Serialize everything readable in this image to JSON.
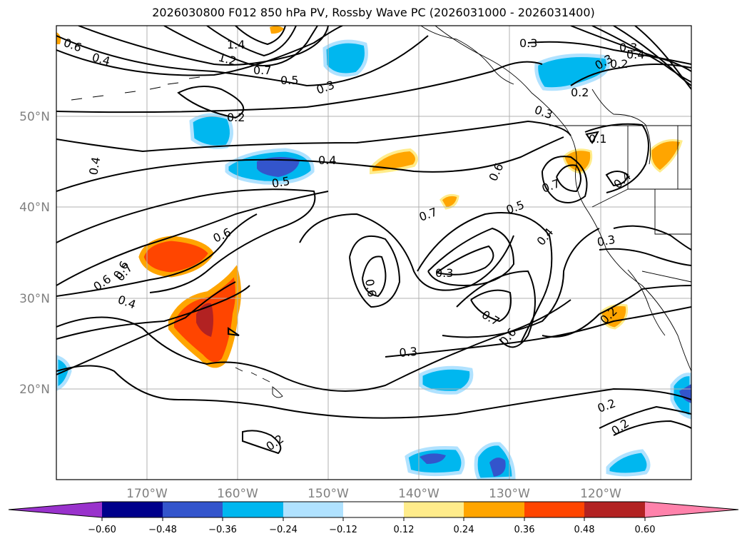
{
  "title": "2026030800 F012 850 hPa PV, Rossby Wave PC (2026031000 - 2026031400)",
  "map": {
    "lon_ticks": [
      "170°W",
      "160°W",
      "150°W",
      "140°W",
      "130°W",
      "120°W"
    ],
    "lat_ticks": [
      "50°N",
      "40°N",
      "30°N",
      "20°N"
    ],
    "contour_labels": [
      "0.6",
      "0.4",
      "1.4",
      "1.2",
      "0.7",
      "0.5",
      "0.3",
      "0.2",
      "0.4",
      "0.5",
      "0.6",
      "0.6",
      "0.7",
      "0.4",
      "0.5",
      "0.6",
      "0.7",
      "0.3",
      "0.3",
      "0.6",
      "0.4",
      "0.4",
      "0.7",
      "0.6",
      "0.3",
      "0.2",
      "0.2",
      "0.2",
      "0.2",
      "0.3",
      "0.2",
      "0.3",
      "0.4",
      "0.3",
      "0.3",
      "0.7",
      "0.6",
      "0.1",
      "0.4",
      "0.2"
    ]
  },
  "colorbar": {
    "ticks": [
      "−0.60",
      "−0.48",
      "−0.36",
      "−0.24",
      "−0.12",
      "0.12",
      "0.24",
      "0.36",
      "0.48",
      "0.60"
    ],
    "colors": [
      "#9932cc",
      "#00008b",
      "#3355cc",
      "#00b7ef",
      "#b0e2ff",
      "#ffffff",
      "#ffec8b",
      "#ffa500",
      "#ff4500",
      "#b22222",
      "#ff82ab"
    ]
  }
}
